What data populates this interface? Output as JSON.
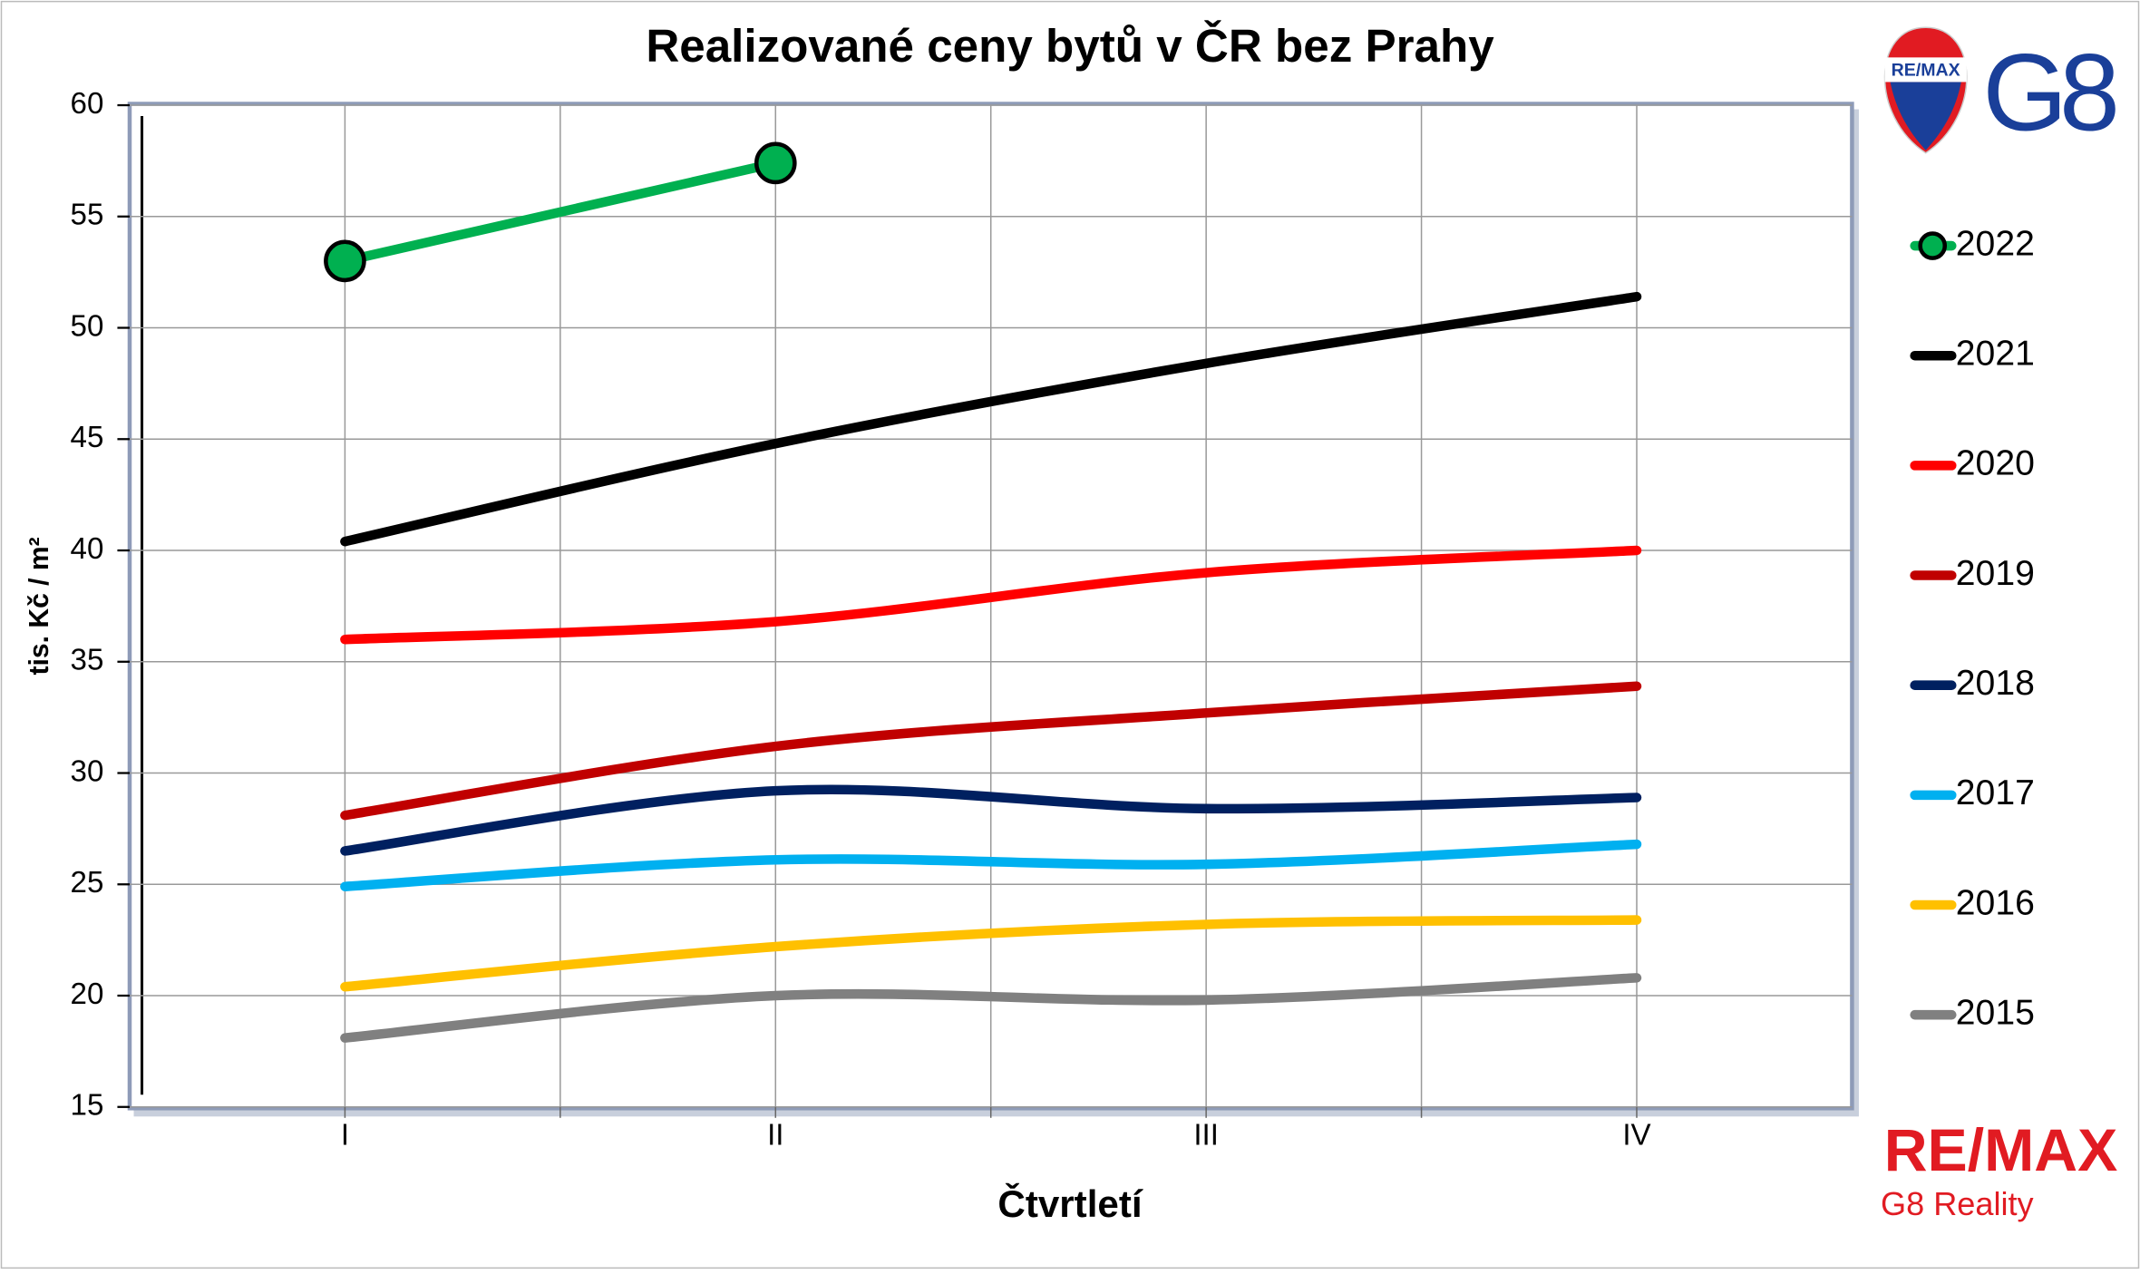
{
  "chart_data": {
    "type": "line",
    "title": "Realizované ceny bytů v ČR bez Prahy",
    "x_label": "Čtvrtletí",
    "y_label": "tis. Kč / m²",
    "categories": [
      "I",
      "II",
      "III",
      "IV"
    ],
    "series": [
      {
        "name": "2022",
        "color": "#00b050",
        "values": [
          53.0,
          57.4,
          null,
          null
        ],
        "markers": true
      },
      {
        "name": "2021",
        "color": "#000000",
        "values": [
          40.4,
          44.8,
          48.4,
          51.4
        ]
      },
      {
        "name": "2020",
        "color": "#ff0000",
        "values": [
          36.0,
          36.8,
          39.0,
          40.0
        ]
      },
      {
        "name": "2019",
        "color": "#c00000",
        "values": [
          28.1,
          31.2,
          32.7,
          33.9
        ]
      },
      {
        "name": "2018",
        "color": "#002060",
        "values": [
          26.5,
          29.2,
          28.4,
          28.9
        ]
      },
      {
        "name": "2017",
        "color": "#00b0f0",
        "values": [
          24.9,
          26.1,
          25.9,
          26.8
        ]
      },
      {
        "name": "2016",
        "color": "#ffc000",
        "values": [
          20.4,
          22.2,
          23.2,
          23.4
        ]
      },
      {
        "name": "2015",
        "color": "#808080",
        "values": [
          18.1,
          20.0,
          19.8,
          20.8
        ]
      }
    ],
    "ylim": [
      15,
      60
    ],
    "yticks": [
      15,
      20,
      25,
      30,
      35,
      40,
      45,
      50,
      55,
      60
    ],
    "grid": true,
    "legend": "right"
  },
  "branding": {
    "balloon": "RE/MAX",
    "mark": "G8",
    "wordmark": "RE/MAX",
    "subtitle": "G8 Reality"
  }
}
